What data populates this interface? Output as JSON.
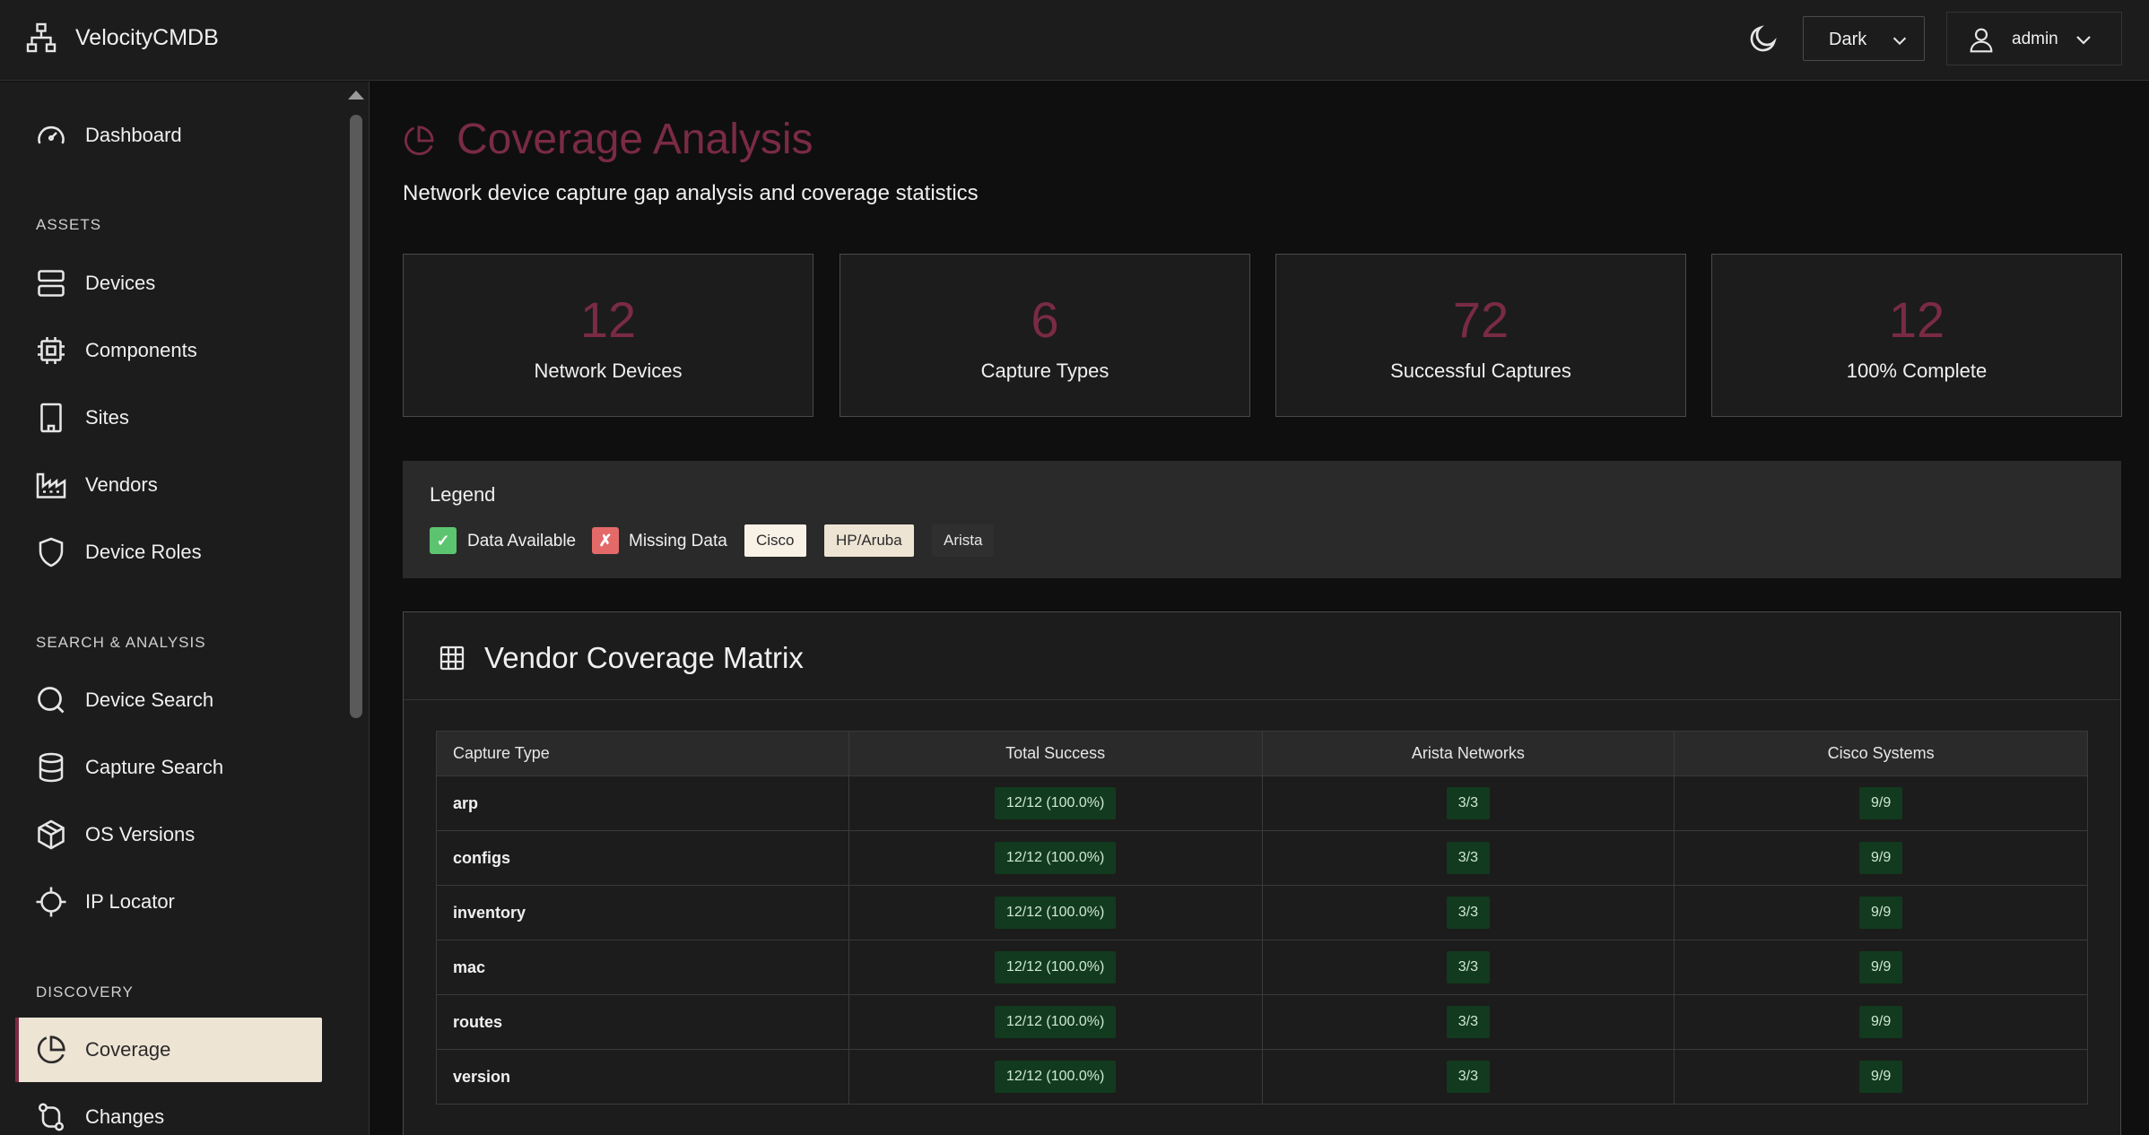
{
  "app": {
    "title": "VelocityCMDB"
  },
  "header": {
    "theme_value": "Dark",
    "user_name": "admin"
  },
  "sidebar": {
    "items": [
      {
        "label": "Dashboard",
        "icon": "gauge-icon"
      },
      {
        "label": "Devices",
        "icon": "server-icon"
      },
      {
        "label": "Components",
        "icon": "chip-icon"
      },
      {
        "label": "Sites",
        "icon": "building-icon"
      },
      {
        "label": "Vendors",
        "icon": "factory-icon"
      },
      {
        "label": "Device Roles",
        "icon": "shield-icon"
      },
      {
        "label": "Device Search",
        "icon": "search-icon"
      },
      {
        "label": "Capture Search",
        "icon": "database-icon"
      },
      {
        "label": "OS Versions",
        "icon": "box-icon"
      },
      {
        "label": "IP Locator",
        "icon": "crosshair-icon"
      },
      {
        "label": "Coverage",
        "icon": "pie-chart-icon"
      },
      {
        "label": "Changes",
        "icon": "git-compare-icon"
      }
    ],
    "sections": [
      "ASSETS",
      "SEARCH & ANALYSIS",
      "DISCOVERY"
    ]
  },
  "page": {
    "title": "Coverage Analysis",
    "subtitle": "Network device capture gap analysis and coverage statistics"
  },
  "stats": [
    {
      "value": "12",
      "label": "Network Devices"
    },
    {
      "value": "6",
      "label": "Capture Types"
    },
    {
      "value": "72",
      "label": "Successful Captures"
    },
    {
      "value": "12",
      "label": "100% Complete"
    }
  ],
  "legend": {
    "title": "Legend",
    "available_mark": "✓",
    "available_label": "Data Available",
    "missing_mark": "✗",
    "missing_label": "Missing Data",
    "vendors": [
      "Cisco",
      "HP/Aruba",
      "Arista"
    ]
  },
  "matrix": {
    "title": "Vendor Coverage Matrix",
    "columns": [
      "Capture Type",
      "Total Success",
      "Arista Networks",
      "Cisco Systems"
    ],
    "rows": [
      {
        "type": "arp",
        "total": "12/12 (100.0%)",
        "arista": "3/3",
        "cisco": "9/9"
      },
      {
        "type": "configs",
        "total": "12/12 (100.0%)",
        "arista": "3/3",
        "cisco": "9/9"
      },
      {
        "type": "inventory",
        "total": "12/12 (100.0%)",
        "arista": "3/3",
        "cisco": "9/9"
      },
      {
        "type": "mac",
        "total": "12/12 (100.0%)",
        "arista": "3/3",
        "cisco": "9/9"
      },
      {
        "type": "routes",
        "total": "12/12 (100.0%)",
        "arista": "3/3",
        "cisco": "9/9"
      },
      {
        "type": "version",
        "total": "12/12 (100.0%)",
        "arista": "3/3",
        "cisco": "9/9"
      }
    ]
  },
  "colors": {
    "accent": "#7a2b44",
    "available": "#5cc46f",
    "missing": "#e46a6a",
    "cisco_badge": "#f7f1e6",
    "hparuba_badge": "#ede4d4",
    "arista_badge": "#2f2f2f",
    "success_pill": "#123a1e"
  }
}
